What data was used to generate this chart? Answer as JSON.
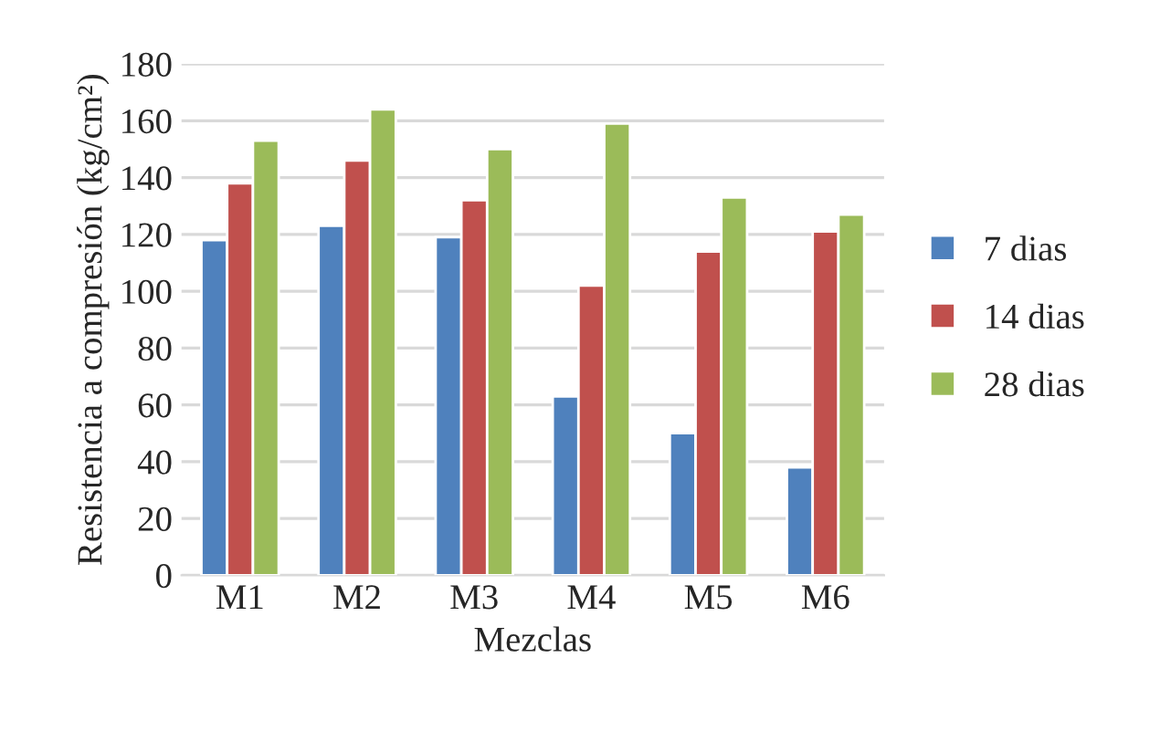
{
  "chart_data": {
    "type": "bar",
    "xlabel": "Mezclas",
    "ylabel": "Resistencia a compresión (kg/cm²)",
    "categories": [
      "M1",
      "M2",
      "M3",
      "M4",
      "M5",
      "M6"
    ],
    "series": [
      {
        "name": "7 dias",
        "color": "#4f81bd",
        "values": [
          118,
          123,
          119,
          63,
          50,
          38
        ]
      },
      {
        "name": "14 dias",
        "color": "#c0504d",
        "values": [
          138,
          146,
          132,
          102,
          114,
          121
        ]
      },
      {
        "name": "28 dias",
        "color": "#9bbb59",
        "values": [
          153,
          164,
          150,
          159,
          133,
          127
        ]
      }
    ],
    "ylim": [
      0,
      180
    ],
    "yticks": [
      0,
      20,
      40,
      60,
      80,
      100,
      120,
      140,
      160,
      180
    ],
    "grid": "y",
    "legend": "right"
  }
}
